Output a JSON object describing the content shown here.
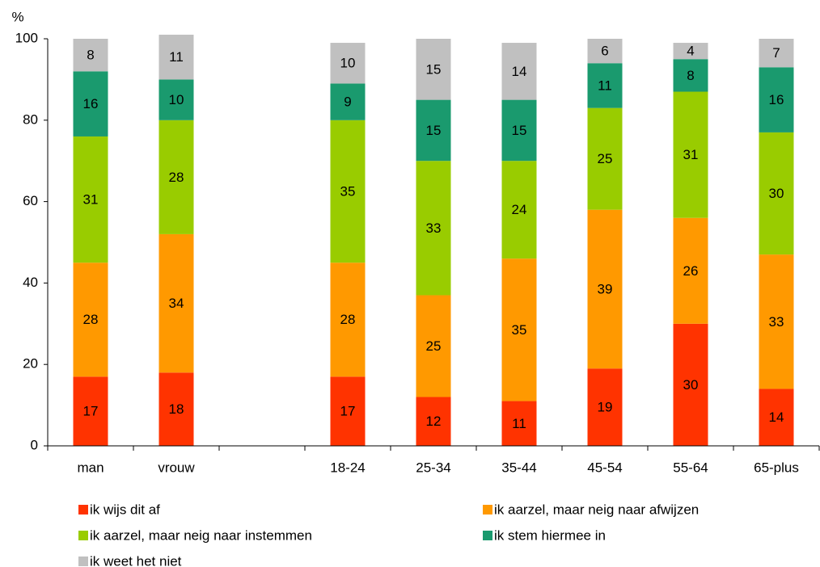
{
  "chart_data": {
    "type": "stacked_bar",
    "ylabel": "%",
    "categories": [
      "man",
      "vrouw",
      null,
      "18-24",
      "25-34",
      "35-44",
      "45-54",
      "55-64",
      "65-plus"
    ],
    "series": [
      {
        "name": "ik wijs dit af",
        "color": "#ff3300",
        "values": [
          17,
          18,
          null,
          17,
          12,
          11,
          19,
          30,
          14
        ]
      },
      {
        "name": "ik aarzel, maar neig naar afwijzen",
        "color": "#ff9900",
        "values": [
          28,
          34,
          null,
          28,
          25,
          35,
          39,
          26,
          33
        ]
      },
      {
        "name": "ik aarzel, maar neig naar instemmen",
        "color": "#99cc00",
        "values": [
          31,
          28,
          null,
          35,
          33,
          24,
          25,
          31,
          30
        ]
      },
      {
        "name": "ik stem hiermee in",
        "color": "#1a9a6e",
        "values": [
          16,
          10,
          null,
          9,
          15,
          15,
          11,
          8,
          16
        ]
      },
      {
        "name": "ik weet het niet",
        "color": "#c0c0c0",
        "values": [
          8,
          11,
          null,
          10,
          15,
          14,
          6,
          4,
          7
        ]
      }
    ],
    "ylim": [
      0,
      100
    ],
    "yticks": [
      0,
      20,
      40,
      60,
      80,
      100
    ],
    "grid": false,
    "legend": "bottom"
  }
}
